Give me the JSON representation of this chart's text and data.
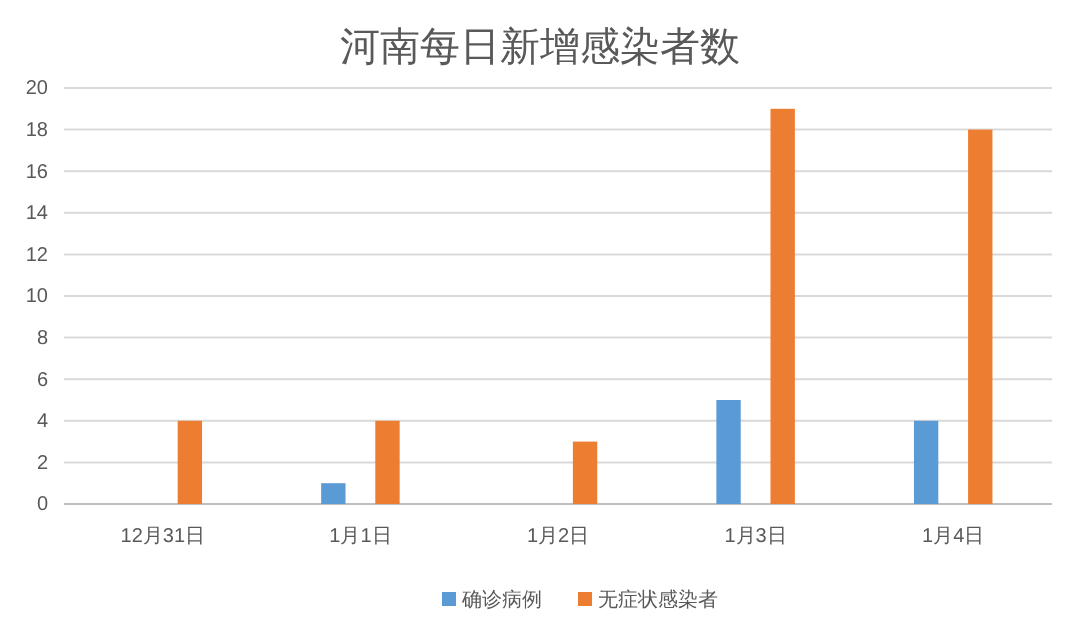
{
  "chart_data": {
    "type": "bar",
    "title": "河南每日新增感染者数",
    "categories": [
      "12月31日",
      "1月1日",
      "1月2日",
      "1月3日",
      "1月4日"
    ],
    "series": [
      {
        "name": "确诊病例",
        "color": "#5b9bd5",
        "values": [
          0,
          1,
          0,
          5,
          4
        ]
      },
      {
        "name": "无症状感染者",
        "color": "#ed7d31",
        "values": [
          4,
          4,
          3,
          19,
          18
        ]
      }
    ],
    "ylim": [
      0,
      20
    ],
    "yticks": [
      0,
      2,
      4,
      6,
      8,
      10,
      12,
      14,
      16,
      18,
      20
    ],
    "grid": "y",
    "legend": "bottom"
  }
}
